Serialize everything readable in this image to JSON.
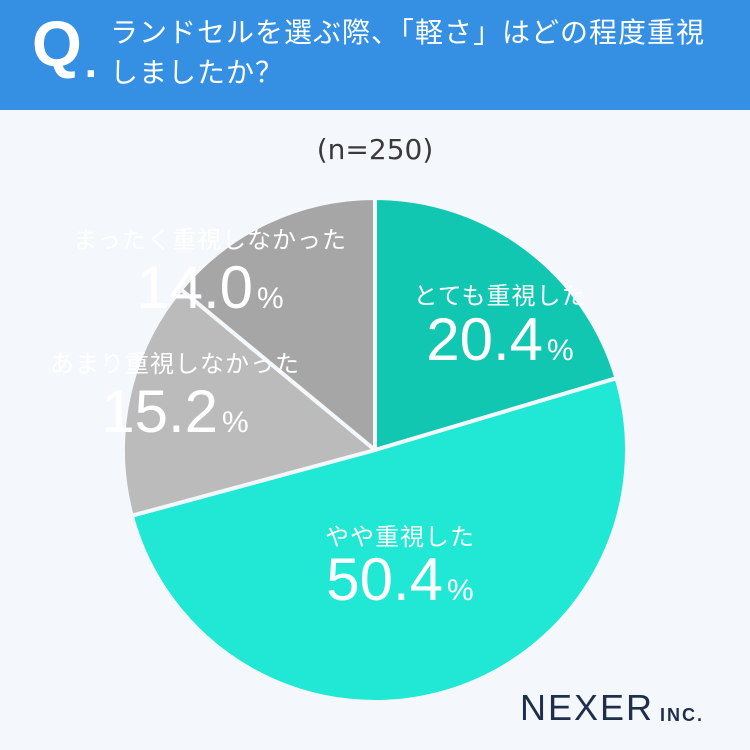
{
  "header": {
    "q_letter": "Q",
    "q_dot": ".",
    "question": "ランドセルを選ぶ際、「軽さ」はどの程度重視しましたか？"
  },
  "sample_size": "(n=250)",
  "brand": {
    "name": "NEXER",
    "suffix": "INC."
  },
  "colors": {
    "header": "#3590e4",
    "very": "#12c7b2",
    "somewhat": "#21e8d4",
    "not_much": "#bcbbbc",
    "not_at_all": "#a6a6a6",
    "border": "#f4f8fd"
  },
  "chart_data": {
    "type": "pie",
    "unit": "%",
    "slices": [
      {
        "label": "とても重視した",
        "value": 20.4,
        "value_text": "20.4",
        "color": "#12c7b2",
        "text_color": "#ffffff"
      },
      {
        "label": "やや重視した",
        "value": 50.4,
        "value_text": "50.4",
        "color": "#21e8d4",
        "text_color": "#ffffff"
      },
      {
        "label": "あまり重視しなかった",
        "value": 15.2,
        "value_text": "15.2",
        "color": "#bcbbbc",
        "text_color": "#ffffff"
      },
      {
        "label": "まったく重視しなかった",
        "value": 14.0,
        "value_text": "14.0",
        "color": "#a6a6a6",
        "text_color": "#ffffff"
      }
    ]
  }
}
